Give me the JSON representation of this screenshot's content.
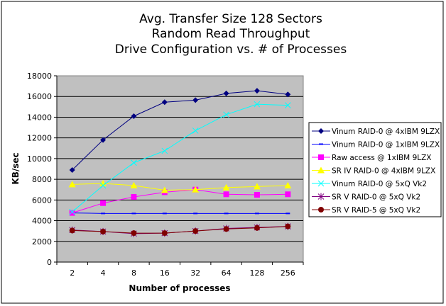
{
  "chart_data": {
    "type": "line",
    "title": [
      "Avg. Transfer Size 128 Sectors",
      "Random Read Throughput",
      "Drive Configuration vs. # of Processes"
    ],
    "xlabel": "Number of processes",
    "ylabel": "KB/sec",
    "categories": [
      "2",
      "4",
      "8",
      "16",
      "32",
      "64",
      "128",
      "256"
    ],
    "ylim": [
      0,
      18000
    ],
    "yticks": [
      0,
      2000,
      4000,
      6000,
      8000,
      10000,
      12000,
      14000,
      16000,
      18000
    ],
    "grid": true,
    "legend_position": "right",
    "series": [
      {
        "name": "Vinum RAID-0 @ 4xIBM 9LZX",
        "color": "#000080",
        "marker": "diamond",
        "values": [
          8900,
          11800,
          14100,
          15450,
          15650,
          16300,
          16550,
          16200
        ]
      },
      {
        "name": "Vinum RAID-0 @ 1xIBM 9LZX",
        "color": "#0000ff",
        "marker": "dash",
        "values": [
          4750,
          4700,
          4700,
          4700,
          4700,
          4700,
          4700,
          4700
        ]
      },
      {
        "name": "Raw access @ 1xIBM 9LZX",
        "color": "#ff00ff",
        "marker": "square",
        "values": [
          4750,
          5700,
          6300,
          6750,
          7000,
          6550,
          6500,
          6550
        ]
      },
      {
        "name": "SR IV RAID-0 @ 4xIBM 9LZX",
        "color": "#ffff00",
        "marker": "triangle",
        "values": [
          7500,
          7600,
          7400,
          6950,
          7000,
          7200,
          7300,
          7400
        ]
      },
      {
        "name": "Vinum RAID-0 @ 5xQ Vk2",
        "color": "#00ffff",
        "marker": "x",
        "values": [
          4850,
          7400,
          9600,
          10750,
          12700,
          14250,
          15250,
          15150
        ]
      },
      {
        "name": "SR V RAID-0 @ 5xQ Vk2",
        "color": "#800080",
        "marker": "star",
        "values": [
          3100,
          2950,
          2750,
          2800,
          3000,
          3250,
          3350,
          3450
        ]
      },
      {
        "name": "SR V RAID-5 @ 5xQ Vk2",
        "color": "#800000",
        "marker": "circle",
        "values": [
          3050,
          2950,
          2800,
          2800,
          3000,
          3200,
          3300,
          3450
        ]
      }
    ]
  }
}
